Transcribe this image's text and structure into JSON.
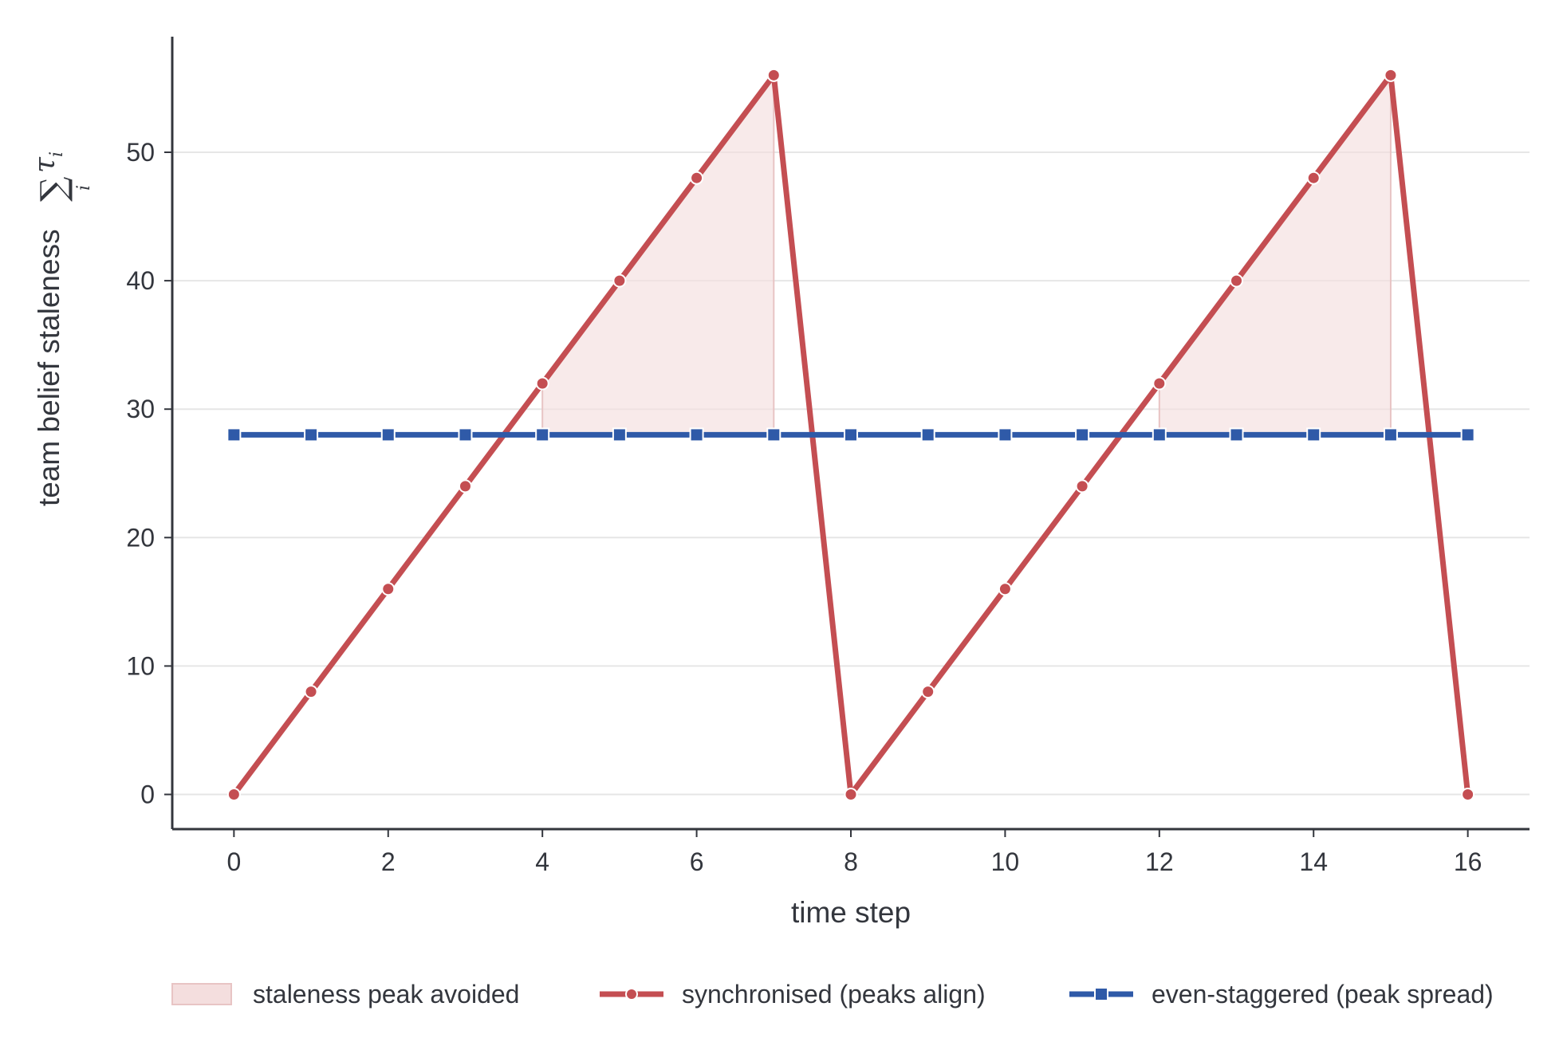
{
  "chart_data": {
    "type": "line",
    "xlabel": "time step",
    "ylabel": "team belief staleness",
    "ylabel_math": {
      "symbol": "∑",
      "subscript": "i",
      "term": "τ",
      "term_subscript": "i"
    },
    "xlim": [
      -0.8,
      16.8
    ],
    "ylim": [
      -2.7,
      59
    ],
    "xticks": [
      0,
      2,
      4,
      6,
      8,
      10,
      12,
      14,
      16
    ],
    "yticks": [
      0,
      10,
      20,
      30,
      40,
      50
    ],
    "grid": {
      "y": true,
      "x": false
    },
    "legend_position": "bottom",
    "series": [
      {
        "name": "synchronised (peaks align)",
        "color": "#c44e52",
        "marker": "circle",
        "x": [
          0,
          1,
          2,
          3,
          4,
          5,
          6,
          7,
          8,
          9,
          10,
          11,
          12,
          13,
          14,
          15,
          16
        ],
        "y": [
          0,
          8,
          16,
          24,
          32,
          40,
          48,
          56,
          0,
          8,
          16,
          24,
          32,
          40,
          48,
          56,
          0
        ]
      },
      {
        "name": "even-staggered (peak spread)",
        "color": "#2f5aa8",
        "marker": "square",
        "x": [
          0,
          1,
          2,
          3,
          4,
          5,
          6,
          7,
          8,
          9,
          10,
          11,
          12,
          13,
          14,
          15,
          16
        ],
        "y": [
          28,
          28,
          28,
          28,
          28,
          28,
          28,
          28,
          28,
          28,
          28,
          28,
          28,
          28,
          28,
          28,
          28
        ]
      }
    ],
    "fill_regions": {
      "name": "staleness peak avoided",
      "color": "#f4dede",
      "edge": "#e8c4c4",
      "regions": [
        {
          "x": [
            4,
            5,
            6,
            7
          ],
          "upper": [
            32,
            40,
            48,
            56
          ],
          "lower": [
            28,
            28,
            28,
            28
          ]
        },
        {
          "x": [
            12,
            13,
            14,
            15
          ],
          "upper": [
            32,
            40,
            48,
            56
          ],
          "lower": [
            28,
            28,
            28,
            28
          ]
        }
      ]
    },
    "legend": [
      {
        "label": "staleness peak avoided",
        "kind": "patch"
      },
      {
        "label": "synchronised (peaks align)",
        "kind": "line-circle"
      },
      {
        "label": "even-staggered (peak spread)",
        "kind": "line-square"
      }
    ]
  }
}
